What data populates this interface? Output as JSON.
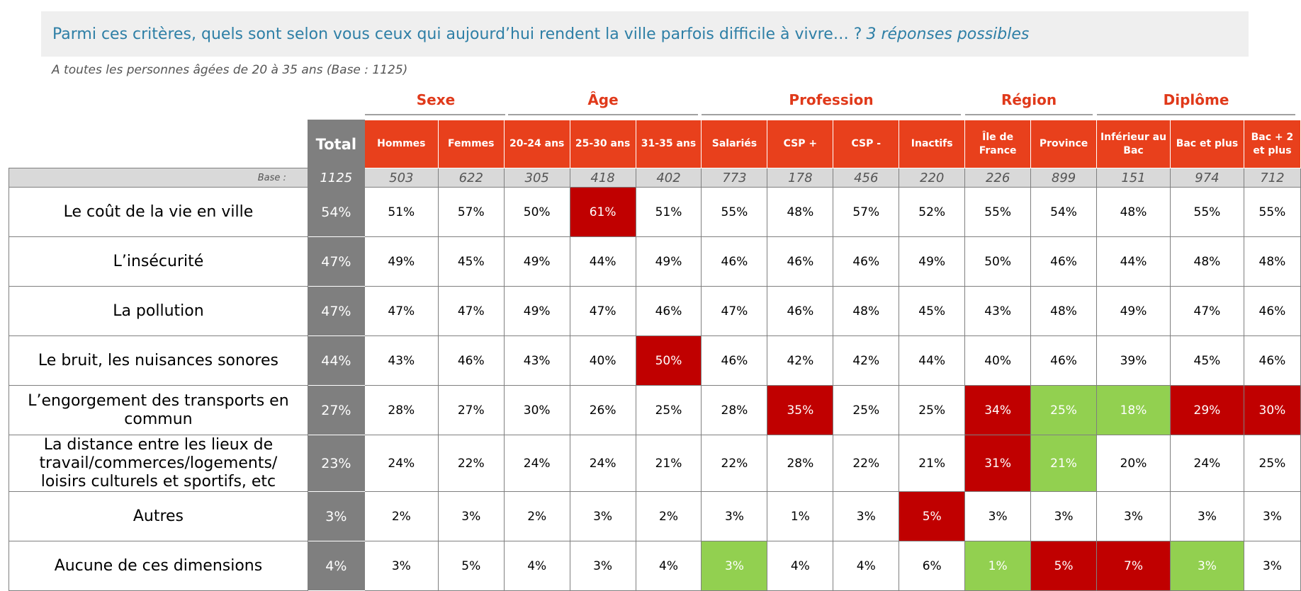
{
  "question": {
    "text": "Parmi ces critères, quels sont selon vous ceux qui aujourd’hui rendent la ville parfois difficile à vivre… ?",
    "emphasis": "3 réponses possibles"
  },
  "base_note": "A toutes les personnes âgées de 20 à 35 ans (Base : 1125)",
  "percent_sign": "%",
  "groups": [
    {
      "label": "Sexe"
    },
    {
      "label": "Âge"
    },
    {
      "label": "Profession"
    },
    {
      "label": "Région"
    },
    {
      "label": "Diplôme"
    }
  ],
  "total_label": "Total",
  "columns": [
    "Hommes",
    "Femmes",
    "20-24 ans",
    "25-30 ans",
    "31-35 ans",
    "Salariés",
    "CSP +",
    "CSP -",
    "Inactifs",
    "Île de France",
    "Province",
    "Inférieur au Bac",
    "Bac et plus",
    "Bac + 2 et plus"
  ],
  "base_row": {
    "label": "Base :",
    "total": "1125",
    "values": [
      "503",
      "622",
      "305",
      "418",
      "402",
      "773",
      "178",
      "456",
      "220",
      "226",
      "899",
      "151",
      "974",
      "712"
    ]
  },
  "colors": {
    "header_orange": "#e8401c",
    "total_gray": "#7f7f7f",
    "significant_high_red": "#c00000",
    "significant_low_green": "#92d050",
    "question_blue": "#2e7fa6"
  },
  "rows": [
    {
      "label": "Le coût de la vie en ville",
      "total": "54%",
      "values": [
        "51%",
        "57%",
        "50%",
        "61%",
        "51%",
        "55%",
        "48%",
        "57%",
        "52%",
        "55%",
        "54%",
        "48%",
        "55%",
        "55%"
      ],
      "highlights": [
        "",
        "",
        "",
        "red",
        "",
        "",
        "",
        "",
        "",
        "",
        "",
        "",
        "",
        ""
      ]
    },
    {
      "label": "L’insécurité",
      "total": "47%",
      "values": [
        "49%",
        "45%",
        "49%",
        "44%",
        "49%",
        "46%",
        "46%",
        "46%",
        "49%",
        "50%",
        "46%",
        "44%",
        "48%",
        "48%"
      ],
      "highlights": [
        "",
        "",
        "",
        "",
        "",
        "",
        "",
        "",
        "",
        "",
        "",
        "",
        "",
        ""
      ]
    },
    {
      "label": "La pollution",
      "total": "47%",
      "values": [
        "47%",
        "47%",
        "49%",
        "47%",
        "46%",
        "47%",
        "46%",
        "48%",
        "45%",
        "43%",
        "48%",
        "49%",
        "47%",
        "46%"
      ],
      "highlights": [
        "",
        "",
        "",
        "",
        "",
        "",
        "",
        "",
        "",
        "",
        "",
        "",
        "",
        ""
      ]
    },
    {
      "label": "Le bruit, les nuisances sonores",
      "total": "44%",
      "values": [
        "43%",
        "46%",
        "43%",
        "40%",
        "50%",
        "46%",
        "42%",
        "42%",
        "44%",
        "40%",
        "46%",
        "39%",
        "45%",
        "46%"
      ],
      "highlights": [
        "",
        "",
        "",
        "",
        "red",
        "",
        "",
        "",
        "",
        "",
        "",
        "",
        "",
        ""
      ]
    },
    {
      "label": "L’engorgement des transports en commun",
      "total": "27%",
      "values": [
        "28%",
        "27%",
        "30%",
        "26%",
        "25%",
        "28%",
        "35%",
        "25%",
        "25%",
        "34%",
        "25%",
        "18%",
        "29%",
        "30%"
      ],
      "highlights": [
        "",
        "",
        "",
        "",
        "",
        "",
        "red",
        "",
        "",
        "red",
        "green",
        "green",
        "red",
        "red"
      ]
    },
    {
      "label": "La distance entre les lieux de travail/commerces/logements/ loisirs culturels et sportifs, etc",
      "total": "23%",
      "values": [
        "24%",
        "22%",
        "24%",
        "24%",
        "21%",
        "22%",
        "28%",
        "22%",
        "21%",
        "31%",
        "21%",
        "20%",
        "24%",
        "25%"
      ],
      "highlights": [
        "",
        "",
        "",
        "",
        "",
        "",
        "",
        "",
        "",
        "red",
        "green",
        "",
        "",
        ""
      ]
    },
    {
      "label": "Autres",
      "total": "3%",
      "values": [
        "2%",
        "3%",
        "2%",
        "3%",
        "2%",
        "3%",
        "1%",
        "3%",
        "5%",
        "3%",
        "3%",
        "3%",
        "3%",
        "3%"
      ],
      "highlights": [
        "",
        "",
        "",
        "",
        "",
        "",
        "",
        "",
        "red",
        "",
        "",
        "",
        "",
        ""
      ]
    },
    {
      "label": "Aucune de ces dimensions",
      "total": "4%",
      "values": [
        "3%",
        "5%",
        "4%",
        "3%",
        "4%",
        "3%",
        "4%",
        "4%",
        "6%",
        "1%",
        "5%",
        "7%",
        "3%",
        "3%"
      ],
      "highlights": [
        "",
        "",
        "",
        "",
        "",
        "green",
        "",
        "",
        "",
        "green",
        "red",
        "red",
        "green",
        ""
      ]
    }
  ]
}
